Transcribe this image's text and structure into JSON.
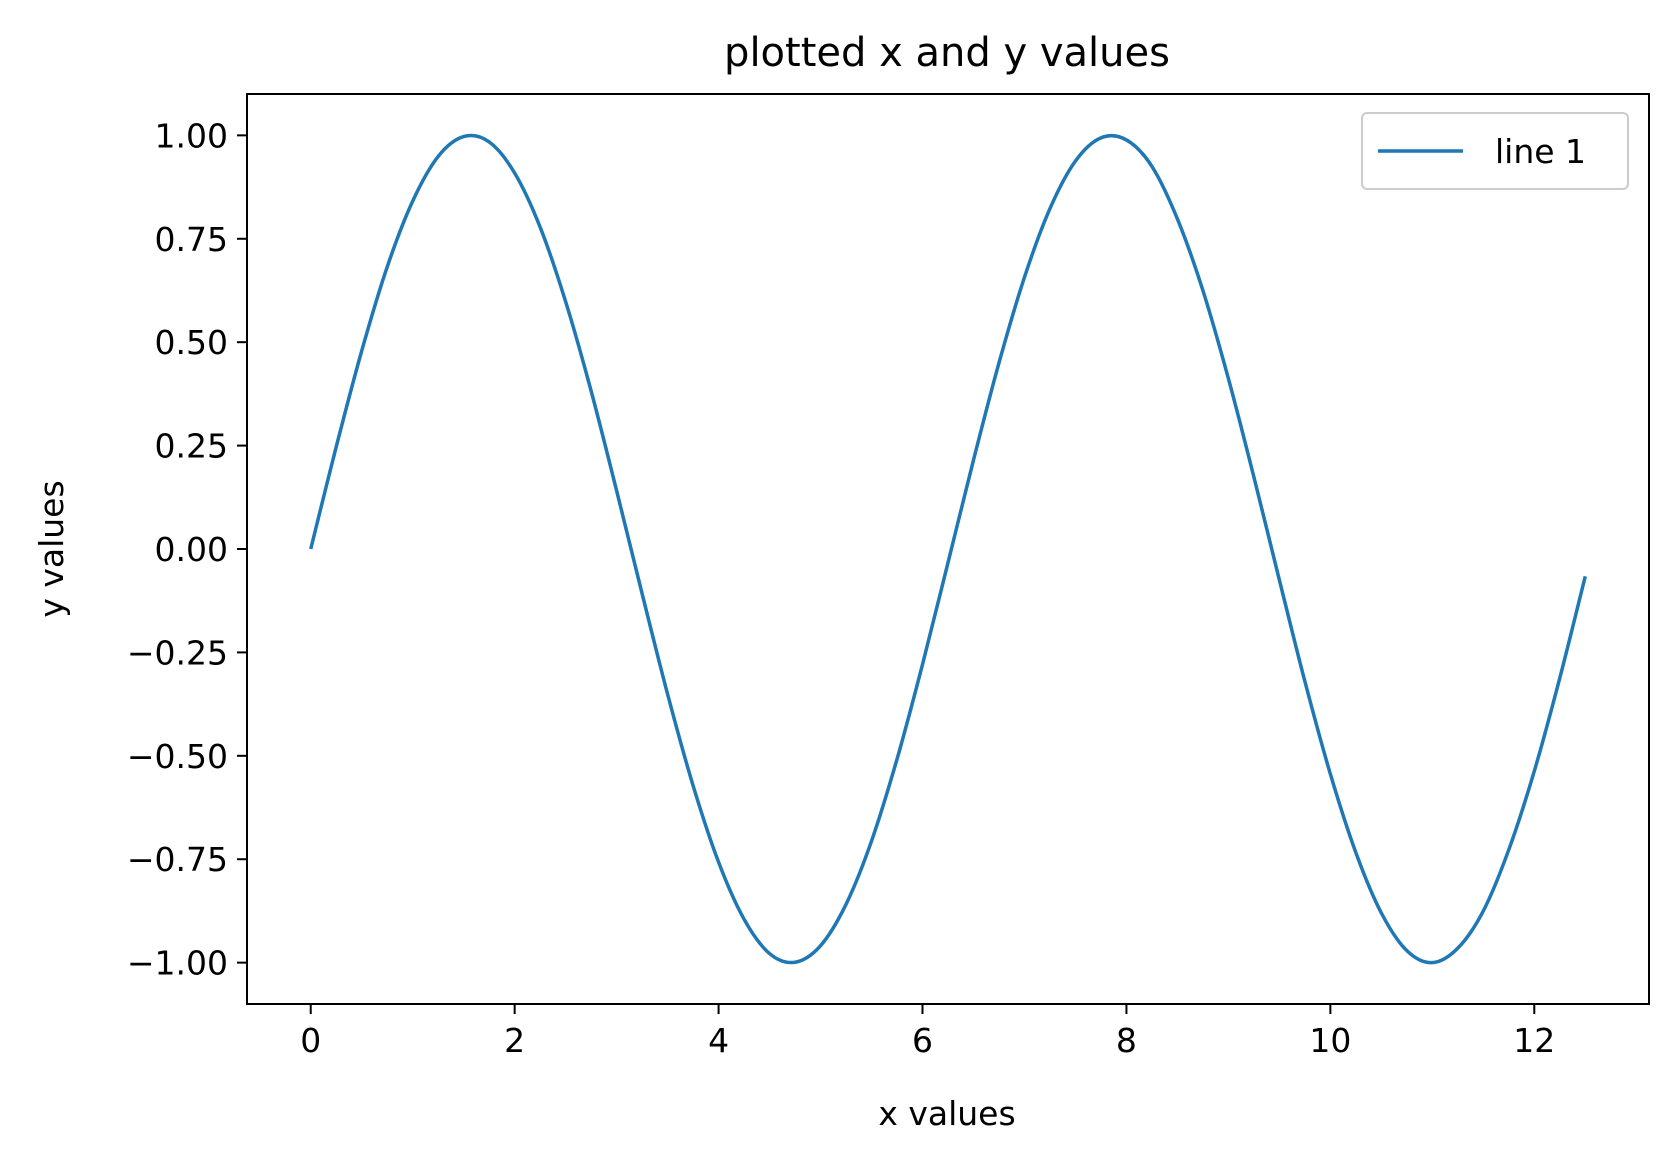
{
  "chart_data": {
    "type": "line",
    "title": "plotted x and y values",
    "xlabel": "x values",
    "ylabel": "y values",
    "xlim": [
      -0.625,
      13.125
    ],
    "ylim": [
      -1.1,
      1.1
    ],
    "xticks": [
      0,
      2,
      4,
      6,
      8,
      10,
      12
    ],
    "xtick_labels": [
      "0",
      "2",
      "4",
      "6",
      "8",
      "10",
      "12"
    ],
    "yticks": [
      1.0,
      0.75,
      0.5,
      0.25,
      0.0,
      -0.25,
      -0.5,
      -0.75,
      -1.0
    ],
    "ytick_labels": [
      "1.00",
      "0.75",
      "0.50",
      "0.25",
      "0.00",
      "−0.25",
      "−0.50",
      "−0.75",
      "−1.00"
    ],
    "grid": false,
    "legend_position": "top-right",
    "series": [
      {
        "name": "line 1",
        "color": "#1f77b4",
        "x": [
          0,
          0.25,
          0.5,
          0.75,
          1.0,
          1.25,
          1.5,
          1.75,
          2.0,
          2.25,
          2.5,
          2.75,
          3.0,
          3.25,
          3.5,
          3.75,
          4.0,
          4.25,
          4.5,
          4.75,
          5.0,
          5.25,
          5.5,
          5.75,
          6.0,
          6.25,
          6.5,
          6.75,
          7.0,
          7.25,
          7.5,
          7.75,
          8.0,
          8.25,
          8.5,
          8.75,
          9.0,
          9.25,
          9.5,
          9.75,
          10.0,
          10.25,
          10.5,
          10.75,
          11.0,
          11.25,
          11.5,
          11.75,
          12.0,
          12.25,
          12.5
        ],
        "y": [
          0.0,
          0.247,
          0.479,
          0.682,
          0.841,
          0.949,
          0.997,
          0.984,
          0.909,
          0.778,
          0.598,
          0.382,
          0.141,
          -0.108,
          -0.351,
          -0.572,
          -0.757,
          -0.895,
          -0.978,
          -0.999,
          -0.959,
          -0.859,
          -0.706,
          -0.508,
          -0.279,
          -0.033,
          0.215,
          0.45,
          0.657,
          0.823,
          0.938,
          0.994,
          0.989,
          0.925,
          0.798,
          0.625,
          0.412,
          0.174,
          -0.075,
          -0.32,
          -0.544,
          -0.734,
          -0.88,
          -0.971,
          -1.0,
          -0.965,
          -0.875,
          -0.727,
          -0.537,
          -0.312,
          -0.066
        ]
      }
    ]
  }
}
